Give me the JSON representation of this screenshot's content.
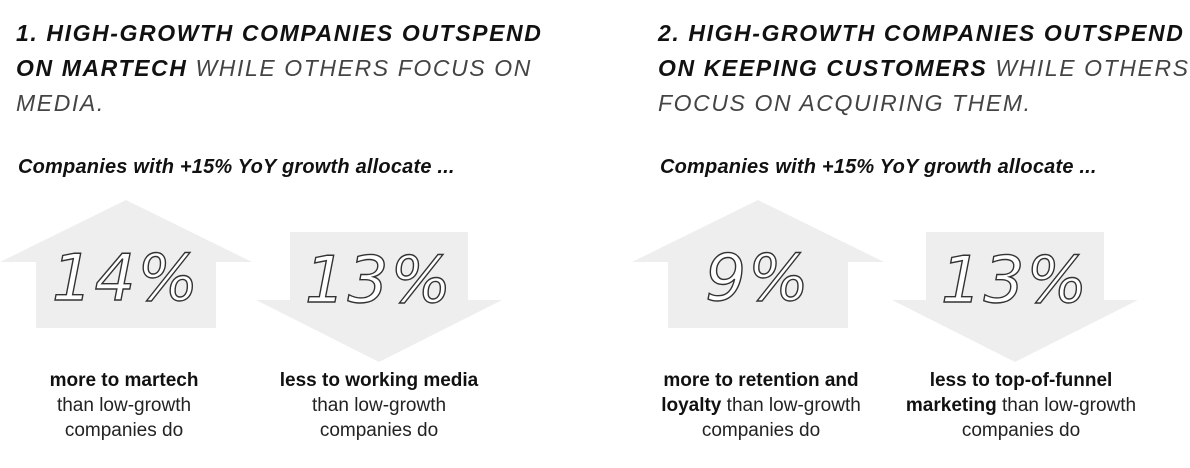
{
  "panel1": {
    "headline_bold_1": "1. HIGH-GROWTH COMPANIES OUTSPEND",
    "headline_bold_2": "ON MARTECH",
    "headline_light": " WHILE OTHERS FOCUS ON MEDIA.",
    "subhead": "Companies with +15% YoY growth allocate ...",
    "stats": [
      {
        "direction": "up",
        "value": "14%",
        "bold": "more to martech",
        "rest": "than low-growth companies do"
      },
      {
        "direction": "down",
        "value": "13%",
        "bold": "less to working media",
        "rest": "than low-growth companies do"
      }
    ]
  },
  "panel2": {
    "headline_bold_1": "2. HIGH-GROWTH COMPANIES OUTSPEND",
    "headline_bold_2": "ON KEEPING CUSTOMERS",
    "headline_light": " WHILE OTHERS FOCUS ON ACQUIRING THEM.",
    "subhead": "Companies with +15% YoY growth allocate ...",
    "stats": [
      {
        "direction": "up",
        "value": "9%",
        "bold": "more to retention and loyalty",
        "rest": "than low-growth companies do"
      },
      {
        "direction": "down",
        "value": "13%",
        "bold": "less to top-of-funnel marketing",
        "rest": "than low-growth companies do"
      }
    ]
  },
  "colors": {
    "arrow_fill": "#eeeeee",
    "text": "#111111",
    "light_text": "#444444"
  }
}
